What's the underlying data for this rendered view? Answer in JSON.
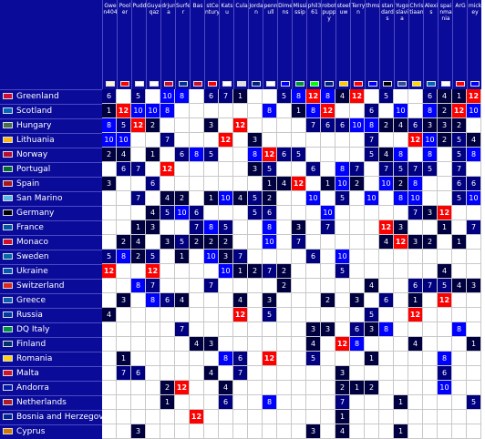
{
  "colors": {
    "header_bg": "#0b0b9a",
    "low": "#000040",
    "mid": "#000080",
    "high": "#0000ff",
    "top": "#ff0000"
  },
  "columns": [
    {
      "name": "Gwen404",
      "flag": "#fff5cc"
    },
    {
      "name": "Pooler",
      "flag": "#ff0000"
    },
    {
      "name": "Pudd",
      "flag": "#ffffff"
    },
    {
      "name": "Guyaqaz",
      "flag": "#ffffff"
    },
    {
      "name": "drjuna",
      "flag": "#c8102e"
    },
    {
      "name": "Surfer",
      "flag": "#003399"
    },
    {
      "name": "Bas",
      "flag": "#c8102e"
    },
    {
      "name": "stCentury",
      "flag": "#ff0000"
    },
    {
      "name": "Katsu",
      "flag": "#ffffff"
    },
    {
      "name": "Cula",
      "flag": "#e0e0e0"
    },
    {
      "name": "Jordan",
      "flag": "#00247d"
    },
    {
      "name": "pennull",
      "flag": "#ffffff"
    },
    {
      "name": "Dimens",
      "flag": "#0000ff"
    },
    {
      "name": "Mississip",
      "flag": "#009639"
    },
    {
      "name": "phil361",
      "flag": "#00ff00"
    },
    {
      "name": "robotpuppy",
      "flag": "#00247d"
    },
    {
      "name": "steeluw",
      "flag": "#ffcc00"
    },
    {
      "name": "Terryn",
      "flag": "#ff0000"
    },
    {
      "name": "thms",
      "flag": "#0000ff"
    },
    {
      "name": "standards",
      "flag": "#000000"
    },
    {
      "name": "Yugoslavia",
      "flag": "#2f4f9a"
    },
    {
      "name": "Christiaan",
      "flag": "#ffd700"
    },
    {
      "name": "Alexis",
      "flag": "#0065bd"
    },
    {
      "name": "spainmania",
      "flag": "#ffffff"
    },
    {
      "name": "ArG",
      "flag": "#ff0000"
    },
    {
      "name": "mickey",
      "flag": "#0000ff"
    }
  ],
  "rows": [
    {
      "label": "Greenland",
      "flag": "#d00c33",
      "cells": [
        "6",
        "",
        "5",
        "",
        "10",
        "8",
        "",
        "6",
        "7",
        "1",
        "",
        "",
        "5",
        "8",
        "12",
        "8",
        "4",
        "12",
        "",
        "5",
        "",
        "",
        "6",
        "4",
        "1",
        "12"
      ]
    },
    {
      "label": "Scotland",
      "flag": "#0065bd",
      "cells": [
        "1",
        "12",
        "10",
        "10",
        "8",
        "",
        "",
        "",
        "",
        "",
        "",
        "8",
        "",
        "1",
        "8",
        "12",
        "",
        "",
        "6",
        "",
        "10",
        "",
        "8",
        "2",
        "12",
        "10"
      ]
    },
    {
      "label": "Hungary",
      "flag": "#477050",
      "cells": [
        "8",
        "5",
        "12",
        "2",
        "",
        "",
        "",
        "3",
        "",
        "12",
        "",
        "",
        "",
        "",
        "7",
        "6",
        "6",
        "10",
        "8",
        "2",
        "4",
        "6",
        "3",
        "3",
        "2",
        ""
      ]
    },
    {
      "label": "Lithuania",
      "flag": "#fdb913",
      "cells": [
        "10",
        "10",
        "",
        "",
        "7",
        "",
        "",
        "",
        "12",
        "",
        "3",
        "",
        "",
        "",
        "",
        "",
        "",
        "",
        "7",
        "",
        "",
        "12",
        "10",
        "2",
        "5",
        "4"
      ]
    },
    {
      "label": "Norway",
      "flag": "#ba0c2f",
      "cells": [
        "2",
        "4",
        "",
        "1",
        "",
        "6",
        "8",
        "5",
        "",
        "",
        "8",
        "12",
        "6",
        "5",
        "",
        "",
        "",
        "",
        "5",
        "4",
        "8",
        "",
        "8",
        "",
        "5",
        "8"
      ]
    },
    {
      "label": "Portugal",
      "flag": "#046a38",
      "cells": [
        "",
        "6",
        "7",
        "",
        "12",
        "",
        "",
        "",
        "",
        "",
        "3",
        "5",
        "",
        "",
        "6",
        "",
        "8",
        "7",
        "",
        "7",
        "5",
        "7",
        "5",
        "",
        "7",
        ""
      ]
    },
    {
      "label": "Spain",
      "flag": "#aa151b",
      "cells": [
        "3",
        "",
        "",
        "6",
        "",
        "",
        "",
        "",
        "",
        "",
        "",
        "1",
        "4",
        "12",
        "",
        "1",
        "10",
        "2",
        "",
        "10",
        "2",
        "8",
        "",
        "",
        "6",
        "6"
      ]
    },
    {
      "label": "San Marino",
      "flag": "#5eb6e4",
      "cells": [
        "",
        "",
        "7",
        "",
        "4",
        "2",
        "",
        "1",
        "10",
        "4",
        "5",
        "2",
        "",
        "",
        "10",
        "",
        "5",
        "",
        "10",
        "",
        "8",
        "10",
        "",
        "",
        "5",
        "10"
      ]
    },
    {
      "label": "Germany",
      "flag": "#000000",
      "cells": [
        "",
        "",
        "",
        "4",
        "5",
        "10",
        "6",
        "",
        "",
        "",
        "5",
        "6",
        "",
        "",
        "",
        "10",
        "",
        "",
        "",
        "",
        "",
        "7",
        "3",
        "12",
        "",
        ""
      ]
    },
    {
      "label": "France",
      "flag": "#0055a4",
      "cells": [
        "",
        "",
        "1",
        "3",
        "",
        "",
        "7",
        "8",
        "5",
        "",
        "",
        "8",
        "",
        "3",
        "",
        "7",
        "",
        "",
        "",
        "12",
        "3",
        "",
        "",
        "1",
        "",
        "7"
      ]
    },
    {
      "label": "Monaco",
      "flag": "#ce1126",
      "cells": [
        "",
        "2",
        "4",
        "",
        "3",
        "5",
        "2",
        "2",
        "2",
        "",
        "",
        "10",
        "",
        "7",
        "",
        "",
        "",
        "",
        "",
        "4",
        "12",
        "3",
        "2",
        "",
        "1",
        ""
      ]
    },
    {
      "label": "Sweden",
      "flag": "#006aa7",
      "cells": [
        "5",
        "8",
        "2",
        "5",
        "",
        "1",
        "",
        "10",
        "3",
        "7",
        "",
        "",
        "",
        "",
        "6",
        "",
        "10",
        "",
        "",
        "",
        "",
        "",
        "",
        "",
        "",
        ""
      ]
    },
    {
      "label": "Ukraine",
      "flag": "#0057b7",
      "cells": [
        "12",
        "",
        "",
        "12",
        "",
        "",
        "",
        "",
        "10",
        "1",
        "2",
        "7",
        "2",
        "",
        "",
        "",
        "5",
        "",
        "",
        "",
        "",
        "",
        "",
        "4",
        "",
        ""
      ]
    },
    {
      "label": "Switzerland",
      "flag": "#da291c",
      "cells": [
        "",
        "",
        "8",
        "7",
        "",
        "",
        "",
        "7",
        "",
        "",
        "",
        "",
        "2",
        "",
        "",
        "",
        "",
        "",
        "4",
        "",
        "",
        "6",
        "7",
        "5",
        "4",
        "3"
      ]
    },
    {
      "label": "Greece",
      "flag": "#0d5eaf",
      "cells": [
        "",
        "3",
        "",
        "8",
        "6",
        "4",
        "",
        "",
        "",
        "4",
        "",
        "3",
        "",
        "",
        "",
        "2",
        "",
        "3",
        "",
        "6",
        "",
        "1",
        "",
        "12",
        "",
        ""
      ]
    },
    {
      "label": "Russia",
      "flag": "#0039a6",
      "cells": [
        "4",
        "",
        "",
        "",
        "",
        "",
        "",
        "",
        "",
        "12",
        "",
        "5",
        "",
        "",
        "",
        "",
        "",
        "",
        "5",
        "",
        "",
        "12",
        "",
        "",
        "",
        ""
      ]
    },
    {
      "label": "DQ Italy",
      "flag": "#009246",
      "cells": [
        "",
        "",
        "",
        "",
        "",
        "7",
        "",
        "",
        "",
        "",
        "",
        "",
        "",
        "",
        "3",
        "3",
        "",
        "6",
        "3",
        "8",
        "",
        "",
        "",
        "",
        "8",
        ""
      ]
    },
    {
      "label": "Finland",
      "flag": "#002f6c",
      "cells": [
        "",
        "",
        "",
        "",
        "",
        "",
        "4",
        "3",
        "",
        "",
        "",
        "",
        "",
        "",
        "4",
        "",
        "12",
        "8",
        "",
        "",
        "",
        "4",
        "",
        "",
        "",
        "1"
      ]
    },
    {
      "label": "Romania",
      "flag": "#fcd116",
      "cells": [
        "",
        "1",
        "",
        "",
        "",
        "",
        "",
        "",
        "8",
        "6",
        "",
        "12",
        "",
        "",
        "5",
        "",
        "",
        "",
        "1",
        "",
        "",
        "",
        "",
        "8",
        "",
        ""
      ]
    },
    {
      "label": "Malta",
      "flag": "#cf142b",
      "cells": [
        "",
        "7",
        "6",
        "",
        "",
        "",
        "",
        "4",
        "",
        "7",
        "",
        "",
        "",
        "",
        "",
        "",
        "3",
        "",
        "",
        "",
        "",
        "",
        "",
        "6",
        "",
        ""
      ]
    },
    {
      "label": "Andorra",
      "flag": "#0018a8",
      "cells": [
        "",
        "",
        "",
        "",
        "2",
        "12",
        "",
        "",
        "4",
        "",
        "",
        "",
        "",
        "",
        "",
        "",
        "2",
        "1",
        "2",
        "",
        "",
        "",
        "",
        "10",
        "",
        ""
      ]
    },
    {
      "label": "Netherlands",
      "flag": "#ae1c28",
      "cells": [
        "",
        "",
        "",
        "",
        "1",
        "",
        "",
        "",
        "6",
        "",
        "",
        "8",
        "",
        "",
        "",
        "",
        "7",
        "",
        "",
        "",
        "1",
        "",
        "",
        "",
        "",
        "5"
      ]
    },
    {
      "label": "Bosnia and Herzegovina",
      "flag": "#002395",
      "cells": [
        "",
        "",
        "",
        "",
        "",
        "",
        "12",
        "",
        "",
        "",
        "",
        "",
        "",
        "",
        "",
        "",
        "1",
        "",
        "",
        "",
        "",
        "",
        "",
        "",
        "",
        ""
      ]
    },
    {
      "label": "Cyprus",
      "flag": "#d57800",
      "cells": [
        "",
        "",
        "3",
        "",
        "",
        "",
        "",
        "",
        "",
        "",
        "",
        "",
        "",
        "",
        "3",
        "",
        "4",
        "",
        "",
        "",
        "1",
        "",
        "",
        "",
        "",
        ""
      ]
    }
  ]
}
